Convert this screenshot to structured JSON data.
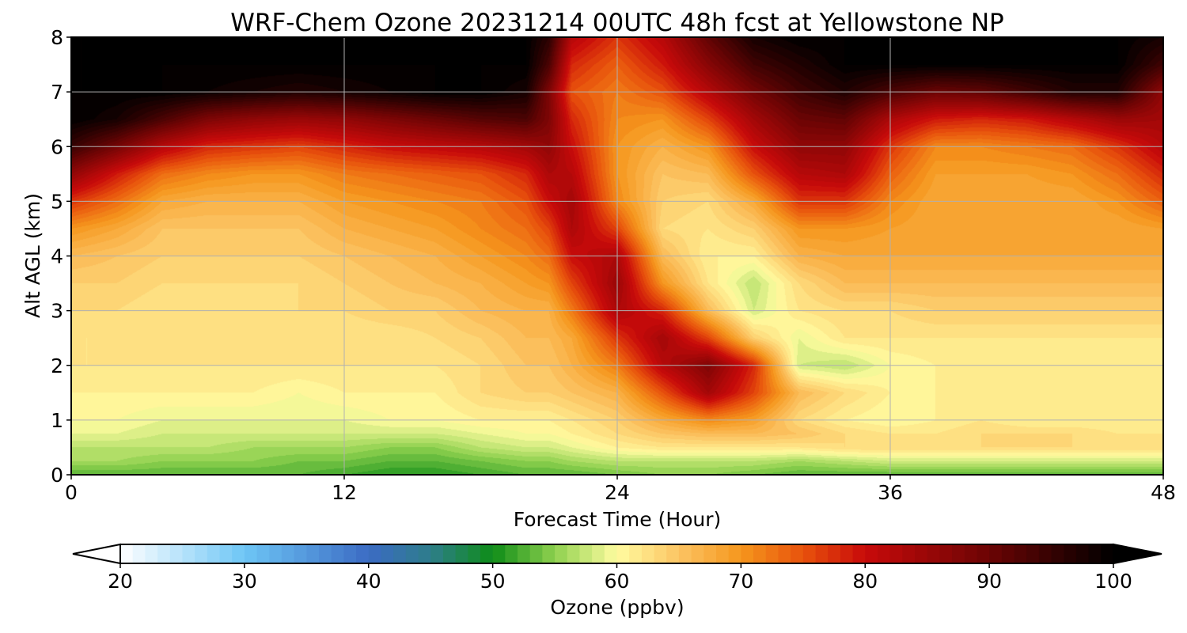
{
  "chart_data": {
    "type": "heatmap",
    "title": "WRF-Chem Ozone  20231214 00UTC 48h fcst at Yellowstone NP",
    "xlabel": "Forecast Time (Hour)",
    "ylabel": "Alt AGL (km)",
    "xlim": [
      0,
      48
    ],
    "ylim": [
      0,
      8
    ],
    "xticks": [
      0,
      12,
      24,
      36,
      48
    ],
    "yticks": [
      0,
      1,
      2,
      3,
      4,
      5,
      6,
      7,
      8
    ],
    "grid": true,
    "colorbar": {
      "label": "Ozone  (ppbv)",
      "orientation": "horizontal",
      "placement": "bottom",
      "range": [
        20,
        100
      ],
      "ticks": [
        20,
        30,
        40,
        50,
        60,
        70,
        80,
        90,
        100
      ],
      "extend": "both",
      "stops": [
        {
          "v": 20,
          "c": "#ffffff"
        },
        {
          "v": 30,
          "c": "#6ec6f5"
        },
        {
          "v": 40,
          "c": "#3b6bc4"
        },
        {
          "v": 45,
          "c": "#2e7d8a"
        },
        {
          "v": 50,
          "c": "#0e8c17"
        },
        {
          "v": 55,
          "c": "#8fd14f"
        },
        {
          "v": 60,
          "c": "#fffca0"
        },
        {
          "v": 65,
          "c": "#fcc463"
        },
        {
          "v": 70,
          "c": "#f5961d"
        },
        {
          "v": 75,
          "c": "#e8520c"
        },
        {
          "v": 80,
          "c": "#c80a0a"
        },
        {
          "v": 90,
          "c": "#6b0404"
        },
        {
          "v": 100,
          "c": "#000000"
        }
      ]
    },
    "time_hours": [
      0,
      2,
      4,
      6,
      8,
      10,
      12,
      14,
      16,
      18,
      20,
      21,
      22,
      24,
      26,
      28,
      30,
      32,
      34,
      36,
      38,
      40,
      42,
      44,
      46,
      48
    ],
    "altitude_km": [
      0,
      0.25,
      0.5,
      0.75,
      1,
      1.5,
      2,
      2.5,
      3,
      3.5,
      4,
      4.5,
      5,
      5.5,
      6,
      6.5,
      7,
      7.5,
      8
    ],
    "ozone_ppbv": [
      [
        53,
        53,
        53,
        53,
        53,
        53,
        52,
        51,
        51,
        52,
        53,
        53,
        53,
        54,
        55,
        55,
        54,
        53,
        53,
        53,
        53,
        53,
        53,
        53,
        53,
        53
      ],
      [
        56,
        56,
        55,
        55,
        55,
        54,
        54,
        53,
        53,
        54,
        55,
        55,
        56,
        57,
        57,
        57,
        57,
        56,
        57,
        58,
        58,
        58,
        58,
        58,
        58,
        58
      ],
      [
        57,
        57,
        57,
        57,
        56,
        56,
        56,
        55,
        55,
        57,
        58,
        58,
        59,
        61,
        62,
        62,
        62,
        62,
        63,
        63,
        63,
        63,
        63,
        63,
        63,
        63
      ],
      [
        59,
        59,
        58,
        58,
        58,
        58,
        58,
        58,
        58,
        59,
        60,
        60,
        61,
        63,
        65,
        66,
        66,
        65,
        63,
        62,
        62,
        63,
        63,
        63,
        62,
        62
      ],
      [
        60,
        60,
        59,
        59,
        59,
        59,
        59,
        60,
        60,
        61,
        61,
        61,
        62,
        64,
        68,
        71,
        69,
        63,
        61,
        60,
        61,
        62,
        61,
        61,
        61,
        61
      ],
      [
        61,
        61,
        61,
        61,
        61,
        60,
        61,
        61,
        61,
        63,
        64,
        64,
        65,
        67,
        75,
        84,
        76,
        66,
        63,
        61,
        61,
        61,
        61,
        61,
        61,
        61
      ],
      [
        62,
        62,
        62,
        62,
        62,
        62,
        62,
        62,
        62,
        63,
        65,
        65,
        67,
        72,
        82,
        88,
        78,
        58,
        57,
        60,
        61,
        61,
        61,
        61,
        61,
        61
      ],
      [
        62,
        62,
        62,
        62,
        62,
        62,
        62,
        62,
        63,
        64,
        66,
        66,
        68,
        77,
        84,
        76,
        64,
        59,
        62,
        62,
        62,
        62,
        62,
        62,
        62,
        62
      ],
      [
        63,
        63,
        62,
        62,
        62,
        63,
        63,
        64,
        64,
        66,
        67,
        67,
        72,
        83,
        78,
        66,
        58,
        62,
        63,
        63,
        64,
        64,
        64,
        64,
        64,
        64
      ],
      [
        64,
        64,
        63,
        63,
        63,
        63,
        64,
        65,
        66,
        67,
        69,
        70,
        76,
        85,
        70,
        62,
        57,
        63,
        66,
        66,
        66,
        66,
        66,
        66,
        66,
        66
      ],
      [
        66,
        65,
        64,
        64,
        64,
        64,
        65,
        66,
        67,
        69,
        71,
        73,
        80,
        83,
        66,
        61,
        61,
        67,
        68,
        68,
        68,
        68,
        68,
        68,
        68,
        68
      ],
      [
        70,
        68,
        65,
        65,
        65,
        65,
        67,
        68,
        69,
        71,
        73,
        76,
        83,
        76,
        63,
        62,
        64,
        70,
        70,
        69,
        68,
        68,
        68,
        68,
        68,
        69
      ],
      [
        77,
        73,
        68,
        67,
        67,
        67,
        69,
        70,
        71,
        72,
        75,
        80,
        84,
        71,
        64,
        63,
        68,
        77,
        77,
        71,
        68,
        68,
        68,
        68,
        70,
        74
      ],
      [
        86,
        79,
        73,
        71,
        70,
        70,
        72,
        73,
        74,
        75,
        78,
        83,
        82,
        70,
        65,
        66,
        75,
        82,
        83,
        74,
        69,
        69,
        69,
        70,
        73,
        78
      ],
      [
        95,
        89,
        82,
        78,
        77,
        76,
        78,
        80,
        81,
        82,
        84,
        86,
        80,
        70,
        67,
        70,
        80,
        86,
        86,
        77,
        71,
        71,
        72,
        73,
        77,
        82
      ],
      [
        100,
        98,
        93,
        88,
        86,
        85,
        86,
        88,
        90,
        92,
        93,
        88,
        78,
        71,
        70,
        76,
        84,
        90,
        91,
        83,
        79,
        78,
        79,
        82,
        85,
        84
      ],
      [
        100,
        100,
        100,
        99,
        98,
        97,
        98,
        99,
        100,
        100,
        98,
        88,
        75,
        72,
        75,
        82,
        89,
        94,
        97,
        93,
        90,
        91,
        94,
        97,
        97,
        86
      ],
      [
        100,
        100,
        100,
        100,
        100,
        100,
        100,
        100,
        100,
        100,
        100,
        93,
        78,
        74,
        79,
        87,
        94,
        97,
        100,
        100,
        100,
        100,
        100,
        100,
        100,
        94
      ],
      [
        100,
        100,
        100,
        100,
        100,
        100,
        100,
        100,
        100,
        100,
        100,
        96,
        82,
        77,
        82,
        91,
        98,
        100,
        100,
        100,
        100,
        100,
        100,
        100,
        100,
        98
      ]
    ]
  }
}
